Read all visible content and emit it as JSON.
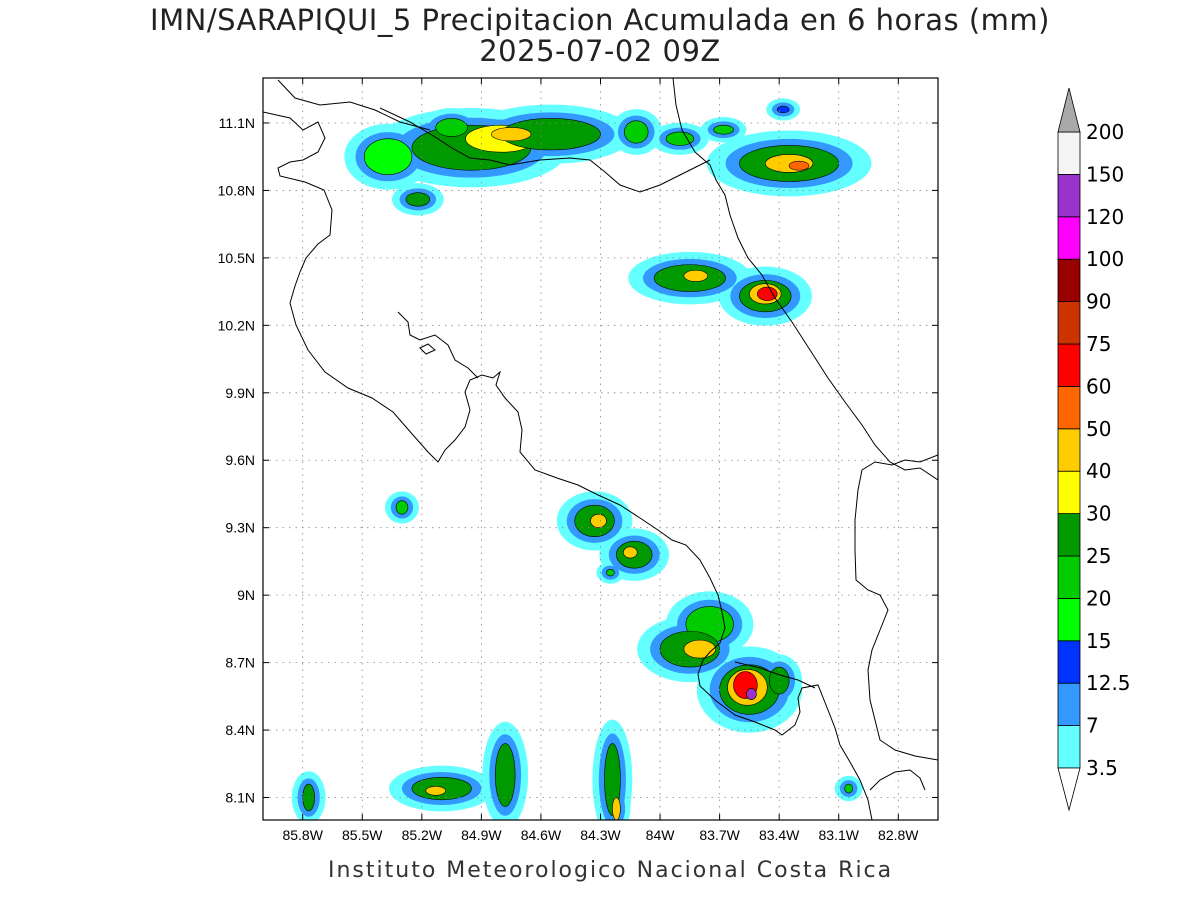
{
  "title": "IMN/SARAPIQUI_5 Precipitacion Acumulada en 6 horas (mm)",
  "subtitle": "2025-07-02 09Z",
  "footer": "Instituto Meteorologico Nacional Costa Rica",
  "map": {
    "lon_range": [
      -86.0,
      -82.6
    ],
    "lat_range": [
      8.0,
      11.3
    ],
    "x_ticks": [
      "85.8W",
      "85.5W",
      "85.2W",
      "84.9W",
      "84.6W",
      "84.3W",
      "84W",
      "83.7W",
      "83.4W",
      "83.1W",
      "82.8W"
    ],
    "x_tick_values": [
      -85.8,
      -85.5,
      -85.2,
      -84.9,
      -84.6,
      -84.3,
      -84.0,
      -83.7,
      -83.4,
      -83.1,
      -82.8
    ],
    "y_ticks": [
      "8.1N",
      "8.4N",
      "8.7N",
      "9N",
      "9.3N",
      "9.6N",
      "9.9N",
      "10.2N",
      "10.5N",
      "10.8N",
      "11.1N"
    ],
    "y_tick_values": [
      8.1,
      8.4,
      8.7,
      9.0,
      9.3,
      9.6,
      9.9,
      10.2,
      10.5,
      10.8,
      11.1
    ],
    "grid": true,
    "precip_cells": [
      {
        "lon": -85.37,
        "lat": 10.95,
        "rx": 0.12,
        "ry": 0.08,
        "level": "15"
      },
      {
        "lon": -84.95,
        "lat": 10.99,
        "rx": 0.3,
        "ry": 0.1,
        "level": "25"
      },
      {
        "lon": -84.8,
        "lat": 11.03,
        "rx": 0.18,
        "ry": 0.06,
        "level": "30"
      },
      {
        "lon": -84.55,
        "lat": 11.05,
        "rx": 0.25,
        "ry": 0.07,
        "level": "25"
      },
      {
        "lon": -85.05,
        "lat": 11.08,
        "rx": 0.08,
        "ry": 0.04,
        "level": "20"
      },
      {
        "lon": -84.75,
        "lat": 11.05,
        "rx": 0.1,
        "ry": 0.03,
        "level": "40"
      },
      {
        "lon": -85.22,
        "lat": 10.76,
        "rx": 0.06,
        "ry": 0.03,
        "level": "25"
      },
      {
        "lon": -84.12,
        "lat": 11.06,
        "rx": 0.06,
        "ry": 0.05,
        "level": "20"
      },
      {
        "lon": -83.9,
        "lat": 11.03,
        "rx": 0.07,
        "ry": 0.03,
        "level": "20"
      },
      {
        "lon": -83.68,
        "lat": 11.07,
        "rx": 0.05,
        "ry": 0.02,
        "level": "20"
      },
      {
        "lon": -83.35,
        "lat": 10.92,
        "rx": 0.25,
        "ry": 0.08,
        "level": "25"
      },
      {
        "lon": -83.35,
        "lat": 10.92,
        "rx": 0.12,
        "ry": 0.04,
        "level": "40"
      },
      {
        "lon": -83.3,
        "lat": 10.91,
        "rx": 0.05,
        "ry": 0.02,
        "level": "50"
      },
      {
        "lon": -83.38,
        "lat": 11.16,
        "rx": 0.03,
        "ry": 0.015,
        "level": "12.5"
      },
      {
        "lon": -83.85,
        "lat": 10.41,
        "rx": 0.18,
        "ry": 0.06,
        "level": "25"
      },
      {
        "lon": -83.82,
        "lat": 10.42,
        "rx": 0.06,
        "ry": 0.025,
        "level": "40"
      },
      {
        "lon": -83.47,
        "lat": 10.33,
        "rx": 0.13,
        "ry": 0.07,
        "level": "25"
      },
      {
        "lon": -83.47,
        "lat": 10.34,
        "rx": 0.08,
        "ry": 0.045,
        "level": "40"
      },
      {
        "lon": -83.46,
        "lat": 10.34,
        "rx": 0.05,
        "ry": 0.03,
        "level": "60"
      },
      {
        "lon": -84.33,
        "lat": 9.33,
        "rx": 0.1,
        "ry": 0.07,
        "level": "25"
      },
      {
        "lon": -84.31,
        "lat": 9.33,
        "rx": 0.04,
        "ry": 0.03,
        "level": "40"
      },
      {
        "lon": -84.13,
        "lat": 9.18,
        "rx": 0.09,
        "ry": 0.06,
        "level": "25"
      },
      {
        "lon": -84.15,
        "lat": 9.19,
        "rx": 0.035,
        "ry": 0.025,
        "level": "40"
      },
      {
        "lon": -85.3,
        "lat": 9.39,
        "rx": 0.03,
        "ry": 0.03,
        "level": "20"
      },
      {
        "lon": -84.25,
        "lat": 9.1,
        "rx": 0.02,
        "ry": 0.015,
        "level": "20"
      },
      {
        "lon": -83.75,
        "lat": 8.87,
        "rx": 0.12,
        "ry": 0.08,
        "level": "20"
      },
      {
        "lon": -83.85,
        "lat": 8.76,
        "rx": 0.15,
        "ry": 0.08,
        "level": "25"
      },
      {
        "lon": -83.8,
        "lat": 8.76,
        "rx": 0.08,
        "ry": 0.04,
        "level": "40"
      },
      {
        "lon": -83.55,
        "lat": 8.58,
        "rx": 0.15,
        "ry": 0.11,
        "level": "25"
      },
      {
        "lon": -83.56,
        "lat": 8.59,
        "rx": 0.1,
        "ry": 0.08,
        "level": "40"
      },
      {
        "lon": -83.57,
        "lat": 8.6,
        "rx": 0.06,
        "ry": 0.06,
        "level": "60"
      },
      {
        "lon": -83.54,
        "lat": 8.56,
        "rx": 0.025,
        "ry": 0.025,
        "level": "120"
      },
      {
        "lon": -83.4,
        "lat": 8.62,
        "rx": 0.05,
        "ry": 0.06,
        "level": "25"
      },
      {
        "lon": -85.1,
        "lat": 8.14,
        "rx": 0.15,
        "ry": 0.05,
        "level": "25"
      },
      {
        "lon": -85.13,
        "lat": 8.13,
        "rx": 0.05,
        "ry": 0.02,
        "level": "40"
      },
      {
        "lon": -84.78,
        "lat": 8.2,
        "rx": 0.05,
        "ry": 0.14,
        "level": "25"
      },
      {
        "lon": -84.24,
        "lat": 8.18,
        "rx": 0.04,
        "ry": 0.16,
        "level": "25"
      },
      {
        "lon": -84.22,
        "lat": 8.05,
        "rx": 0.02,
        "ry": 0.05,
        "level": "40"
      },
      {
        "lon": -85.77,
        "lat": 8.1,
        "rx": 0.03,
        "ry": 0.06,
        "level": "25"
      },
      {
        "lon": -83.05,
        "lat": 8.14,
        "rx": 0.02,
        "ry": 0.02,
        "level": "20"
      }
    ]
  },
  "colorbar": {
    "levels": [
      "3.5",
      "7",
      "12.5",
      "15",
      "20",
      "25",
      "30",
      "40",
      "50",
      "60",
      "75",
      "90",
      "100",
      "120",
      "150",
      "200"
    ],
    "colors": [
      "#64ffff",
      "#3399ff",
      "#0033ff",
      "#00ff00",
      "#00cc00",
      "#009900",
      "#ffff00",
      "#ffcc00",
      "#ff6600",
      "#ff0000",
      "#cc3300",
      "#990000",
      "#ff00ff",
      "#9933cc",
      "#f5f5f5",
      "#a9a9a9"
    ],
    "extend": "both"
  }
}
